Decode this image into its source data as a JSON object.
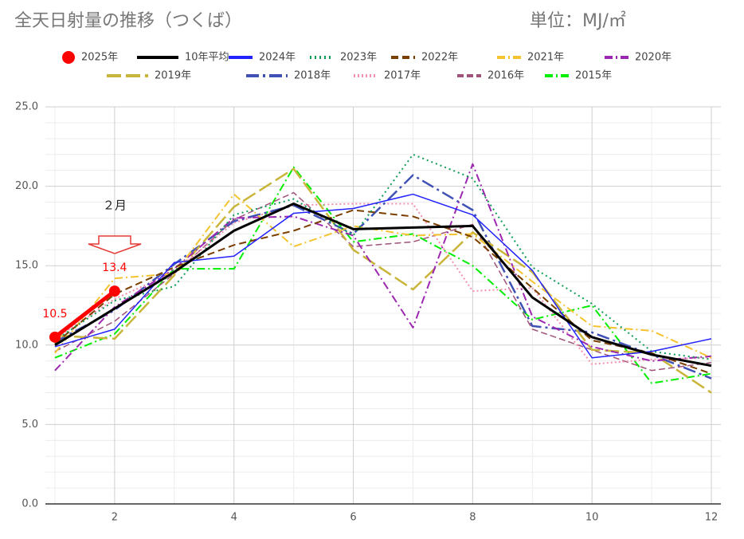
{
  "chart_data": {
    "type": "line",
    "title": "全天日射量の推移（つくば）",
    "subtitle": "単位：MJ/㎡",
    "x": [
      1,
      2,
      3,
      4,
      5,
      6,
      7,
      8,
      9,
      10,
      11,
      12
    ],
    "xlim": [
      0.84,
      12.16
    ],
    "xticks": [
      2,
      4,
      6,
      8,
      10,
      12
    ],
    "xminor": [
      1,
      3,
      5,
      7,
      9,
      11
    ],
    "ylim": [
      0,
      25
    ],
    "yticks": [
      {
        "value": 0,
        "label": "0.0"
      },
      {
        "value": 5,
        "label": "5.0"
      },
      {
        "value": 10,
        "label": "10.0"
      },
      {
        "value": 15,
        "label": "15.0"
      },
      {
        "value": 20,
        "label": "20.0"
      },
      {
        "value": 25,
        "label": "25.0"
      }
    ],
    "yminor": [
      1,
      2,
      3,
      4,
      6,
      7,
      8,
      9,
      11,
      12,
      13,
      14,
      16,
      17,
      18,
      19,
      21,
      22,
      23,
      24
    ],
    "grid": true,
    "legend": "top",
    "annotations": [
      {
        "text": "２月",
        "x": 2
      }
    ],
    "series": [
      {
        "name": "2025年",
        "color": "#ff0000",
        "width": 5,
        "dash": "",
        "marker": "circle",
        "values": [
          10.5,
          13.4,
          null,
          null,
          null,
          null,
          null,
          null,
          null,
          null,
          null,
          null
        ]
      },
      {
        "name": "10年平均",
        "color": "#000000",
        "width": 3,
        "dash": "",
        "values": [
          10.0,
          12.3,
          14.6,
          17.2,
          18.9,
          17.3,
          17.4,
          17.5,
          13.0,
          10.5,
          9.4,
          8.7
        ]
      },
      {
        "name": "2024年",
        "color": "#2222ff",
        "width": 1.5,
        "dash": "",
        "values": [
          9.9,
          11.0,
          15.2,
          15.6,
          18.3,
          18.6,
          19.5,
          18.2,
          14.7,
          9.2,
          9.6,
          10.4
        ]
      },
      {
        "name": "2023年",
        "color": "#0f9d58",
        "width": 2,
        "dash": "2,4",
        "values": [
          10.3,
          12.8,
          13.7,
          18.2,
          19.2,
          16.9,
          22.0,
          20.5,
          14.9,
          12.6,
          9.6,
          9.1
        ]
      },
      {
        "name": "2022年",
        "color": "#7b3f00",
        "width": 2,
        "dash": "9,5",
        "values": [
          10.1,
          13.2,
          14.9,
          16.3,
          17.2,
          18.5,
          18.1,
          16.8,
          13.6,
          10.3,
          9.5,
          8.2
        ]
      },
      {
        "name": "2021年",
        "color": "#f4c430",
        "width": 2,
        "dash": "10,4,2,4",
        "values": [
          9.5,
          14.2,
          14.5,
          19.5,
          16.2,
          17.5,
          16.9,
          17.0,
          14.0,
          11.2,
          10.9,
          9.2
        ]
      },
      {
        "name": "2020年",
        "color": "#9c27b0",
        "width": 2,
        "dash": "10,4,2,4",
        "values": [
          8.4,
          12.4,
          14.8,
          18.0,
          18.1,
          16.9,
          11.1,
          21.4,
          11.8,
          9.9,
          9.0,
          9.3
        ]
      },
      {
        "name": "2019年",
        "color": "#c9b53a",
        "width": 2.5,
        "dash": "18,6",
        "values": [
          10.6,
          10.4,
          14.4,
          18.7,
          21.1,
          16.0,
          13.5,
          17.1,
          14.6,
          9.7,
          9.5,
          7.0
        ]
      },
      {
        "name": "2018年",
        "color": "#3f51b5",
        "width": 2.5,
        "dash": "16,5,3,5",
        "values": [
          10.2,
          12.2,
          15.1,
          17.8,
          18.8,
          17.0,
          20.7,
          18.5,
          11.2,
          10.8,
          9.4,
          7.9
        ]
      },
      {
        "name": "2017年",
        "color": "#f48fb1",
        "width": 2,
        "dash": "2,3",
        "values": [
          10.4,
          12.9,
          14.6,
          17.7,
          18.8,
          18.9,
          18.9,
          13.4,
          13.6,
          8.8,
          9.1,
          9.2
        ]
      },
      {
        "name": "2016年",
        "color": "#a0527a",
        "width": 1.5,
        "dash": "8,4",
        "values": [
          9.6,
          11.5,
          14.5,
          17.9,
          19.6,
          16.2,
          16.5,
          17.6,
          11.0,
          9.7,
          8.4,
          8.9
        ]
      },
      {
        "name": "2015年",
        "color": "#00ee00",
        "width": 2,
        "dash": "10,4,2,4",
        "values": [
          9.2,
          10.7,
          14.8,
          14.8,
          21.2,
          16.5,
          17.0,
          15.0,
          11.6,
          12.5,
          7.6,
          8.2
        ]
      }
    ]
  }
}
